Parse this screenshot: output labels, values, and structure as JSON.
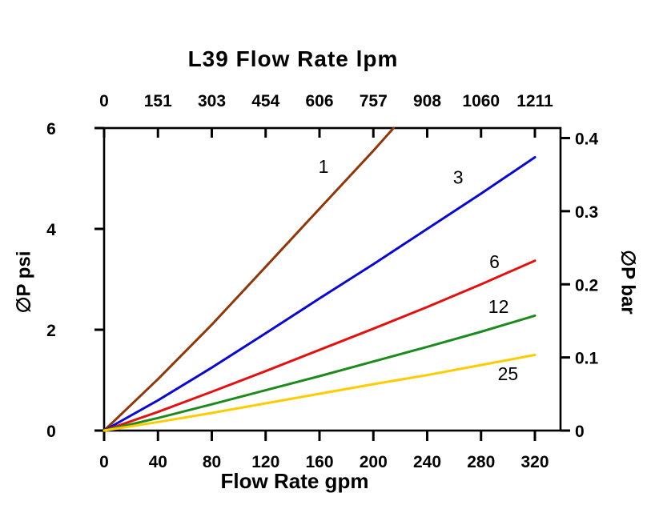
{
  "chart_data": {
    "type": "line",
    "title": "L39 Flow Rate lpm",
    "x_axis_bottom": {
      "label": "Flow Rate gpm",
      "ticks": [
        0,
        40,
        80,
        120,
        160,
        200,
        240,
        280,
        320
      ],
      "range": [
        0,
        339
      ]
    },
    "x_axis_top": {
      "label": "L39 Flow Rate lpm",
      "tick_labels": [
        "0",
        "151",
        "303",
        "454",
        "606",
        "757",
        "908",
        "1060",
        "1211"
      ],
      "unit": "lpm"
    },
    "y_axis_left": {
      "label": "∅P psi",
      "ticks": [
        0,
        2,
        4,
        6
      ],
      "range": [
        0,
        6
      ]
    },
    "y_axis_right": {
      "label": "∅P bar",
      "ticks": [
        0,
        0.1,
        0.2,
        0.3,
        0.4
      ],
      "psi_per_bar": 14.5038
    },
    "frame_color": "#000000",
    "series": [
      {
        "name": "1",
        "color": "#8b3a0e",
        "points": [
          [
            0,
            0
          ],
          [
            40,
            1.02
          ],
          [
            80,
            2.1
          ],
          [
            120,
            3.25
          ],
          [
            160,
            4.4
          ],
          [
            200,
            5.55
          ],
          [
            215,
            6.0
          ]
        ],
        "label_at": [
          163,
          5.24
        ]
      },
      {
        "name": "3",
        "color": "#0a0acd",
        "points": [
          [
            0,
            0
          ],
          [
            40,
            0.6
          ],
          [
            80,
            1.25
          ],
          [
            120,
            1.93
          ],
          [
            160,
            2.62
          ],
          [
            200,
            3.3
          ],
          [
            240,
            4.0
          ],
          [
            280,
            4.7
          ],
          [
            320,
            5.42
          ]
        ],
        "label_at": [
          263,
          5.02
        ]
      },
      {
        "name": "6",
        "color": "#e01212",
        "points": [
          [
            0,
            0
          ],
          [
            40,
            0.37
          ],
          [
            80,
            0.77
          ],
          [
            120,
            1.18
          ],
          [
            160,
            1.6
          ],
          [
            200,
            2.02
          ],
          [
            240,
            2.45
          ],
          [
            280,
            2.9
          ],
          [
            320,
            3.37
          ]
        ],
        "label_at": [
          290,
          3.35
        ]
      },
      {
        "name": "12",
        "color": "#1e8a1e",
        "points": [
          [
            0,
            0
          ],
          [
            40,
            0.25
          ],
          [
            80,
            0.52
          ],
          [
            120,
            0.8
          ],
          [
            160,
            1.08
          ],
          [
            200,
            1.37
          ],
          [
            240,
            1.66
          ],
          [
            280,
            1.96
          ],
          [
            320,
            2.28
          ]
        ],
        "label_at": [
          293,
          2.46
        ]
      },
      {
        "name": "25",
        "color": "#ffcc00",
        "points": [
          [
            0,
            0
          ],
          [
            40,
            0.17
          ],
          [
            80,
            0.35
          ],
          [
            120,
            0.54
          ],
          [
            160,
            0.73
          ],
          [
            200,
            0.92
          ],
          [
            240,
            1.1
          ],
          [
            280,
            1.3
          ],
          [
            320,
            1.5
          ]
        ],
        "label_at": [
          300,
          1.13
        ]
      }
    ]
  }
}
